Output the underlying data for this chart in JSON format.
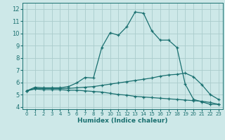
{
  "xlabel": "Humidex (Indice chaleur)",
  "bg_color": "#cde8e8",
  "grid_color": "#aacccc",
  "line_color": "#1a7070",
  "xlim": [
    -0.5,
    23.5
  ],
  "ylim": [
    3.8,
    12.5
  ],
  "xticks": [
    0,
    1,
    2,
    3,
    4,
    5,
    6,
    7,
    8,
    9,
    10,
    11,
    12,
    13,
    14,
    15,
    16,
    17,
    18,
    19,
    20,
    21,
    22,
    23
  ],
  "yticks": [
    4,
    5,
    6,
    7,
    8,
    9,
    10,
    11,
    12
  ],
  "line1_x": [
    0,
    1,
    2,
    3,
    4,
    5,
    6,
    7,
    8,
    9,
    10,
    11,
    12,
    13,
    14,
    15,
    16,
    17,
    18,
    19,
    20,
    21,
    22,
    23
  ],
  "line1_y": [
    5.3,
    5.6,
    5.55,
    5.55,
    5.55,
    5.65,
    5.95,
    6.4,
    6.35,
    8.85,
    10.05,
    9.85,
    10.55,
    11.75,
    11.65,
    10.2,
    9.45,
    9.45,
    8.85,
    5.85,
    4.6,
    4.4,
    4.2,
    4.2
  ],
  "line2_x": [
    0,
    1,
    2,
    3,
    4,
    5,
    6,
    7,
    8,
    9,
    10,
    11,
    12,
    13,
    14,
    15,
    16,
    17,
    18,
    19,
    20,
    21,
    22,
    23
  ],
  "line2_y": [
    5.3,
    5.5,
    5.5,
    5.5,
    5.5,
    5.5,
    5.55,
    5.6,
    5.65,
    5.75,
    5.85,
    5.95,
    6.05,
    6.15,
    6.25,
    6.35,
    6.5,
    6.6,
    6.65,
    6.75,
    6.45,
    5.8,
    5.0,
    4.6
  ],
  "line3_x": [
    0,
    1,
    2,
    3,
    4,
    5,
    6,
    7,
    8,
    9,
    10,
    11,
    12,
    13,
    14,
    15,
    16,
    17,
    18,
    19,
    20,
    21,
    22,
    23
  ],
  "line3_y": [
    5.3,
    5.45,
    5.4,
    5.4,
    5.4,
    5.35,
    5.35,
    5.3,
    5.25,
    5.2,
    5.1,
    5.0,
    4.95,
    4.85,
    4.8,
    4.75,
    4.7,
    4.65,
    4.6,
    4.55,
    4.5,
    4.45,
    4.35,
    4.2
  ]
}
